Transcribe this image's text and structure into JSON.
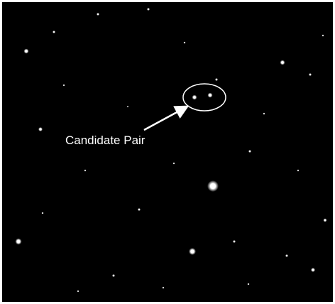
{
  "annotation": {
    "label": "Candidate Pair"
  }
}
